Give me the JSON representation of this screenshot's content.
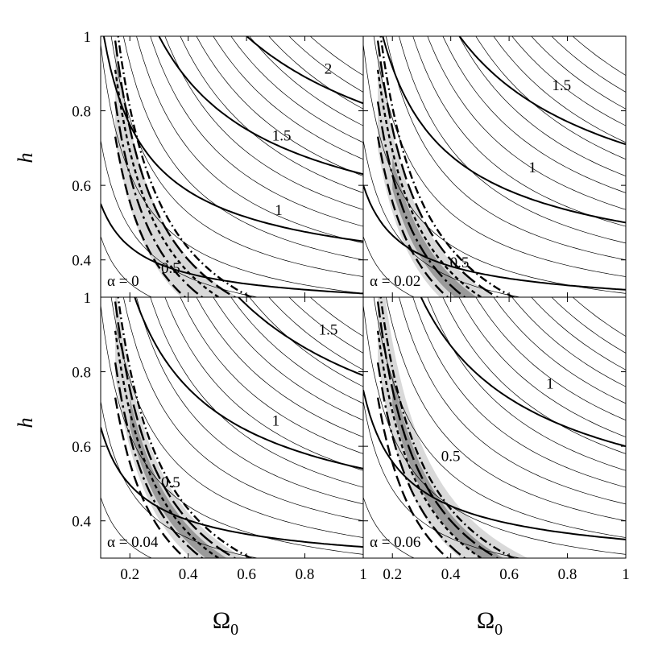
{
  "chart_data": [
    {
      "type": "line",
      "panel_label": "α = 0",
      "xlabel": "",
      "ylabel": "h",
      "xlim": [
        0.1,
        1.0
      ],
      "ylim": [
        0.3,
        1.0
      ],
      "grid": false,
      "contour_labels": [
        {
          "text": "2",
          "x": 0.88,
          "y": 0.9
        },
        {
          "text": "1.5",
          "x": 0.72,
          "y": 0.72
        },
        {
          "text": "1",
          "x": 0.71,
          "y": 0.52
        },
        {
          "text": "0.5",
          "x": 0.34,
          "y": 0.365
        }
      ]
    },
    {
      "type": "line",
      "panel_label": "α = 0.02",
      "xlabel": "",
      "ylabel": "",
      "xlim": [
        0.1,
        1.0
      ],
      "ylim": [
        0.3,
        1.0
      ],
      "grid": false,
      "contour_labels": [
        {
          "text": "1.5",
          "x": 0.78,
          "y": 0.855
        },
        {
          "text": "1",
          "x": 0.68,
          "y": 0.635
        },
        {
          "text": "0.5",
          "x": 0.43,
          "y": 0.38
        }
      ]
    },
    {
      "type": "line",
      "panel_label": "α = 0.04",
      "xlabel": "Ω₀",
      "ylabel": "h",
      "xlim": [
        0.1,
        1.0
      ],
      "ylim": [
        0.3,
        1.0
      ],
      "grid": false,
      "contour_labels": [
        {
          "text": "1.5",
          "x": 0.88,
          "y": 0.9
        },
        {
          "text": "1",
          "x": 0.7,
          "y": 0.655
        },
        {
          "text": "0.5",
          "x": 0.34,
          "y": 0.49
        }
      ]
    },
    {
      "type": "line",
      "panel_label": "α = 0.06",
      "xlabel": "Ω₀",
      "ylabel": "",
      "xlim": [
        0.1,
        1.0
      ],
      "ylim": [
        0.3,
        1.0
      ],
      "grid": false,
      "contour_labels": [
        {
          "text": "1",
          "x": 0.74,
          "y": 0.755
        },
        {
          "text": "0.5",
          "x": 0.4,
          "y": 0.56
        }
      ]
    }
  ],
  "axes": {
    "x_ticks": [
      "0.2",
      "0.4",
      "0.6",
      "0.8",
      "1"
    ],
    "y_ticks": [
      "0.4",
      "0.6",
      "0.8",
      "1"
    ],
    "x_tick_values": [
      0.2,
      0.4,
      0.6,
      0.8,
      1.0
    ],
    "y_tick_values": [
      0.4,
      0.6,
      0.8,
      1.0
    ],
    "ylabel": "h",
    "xlabel": "Ω",
    "xlabel_sub": "0"
  }
}
